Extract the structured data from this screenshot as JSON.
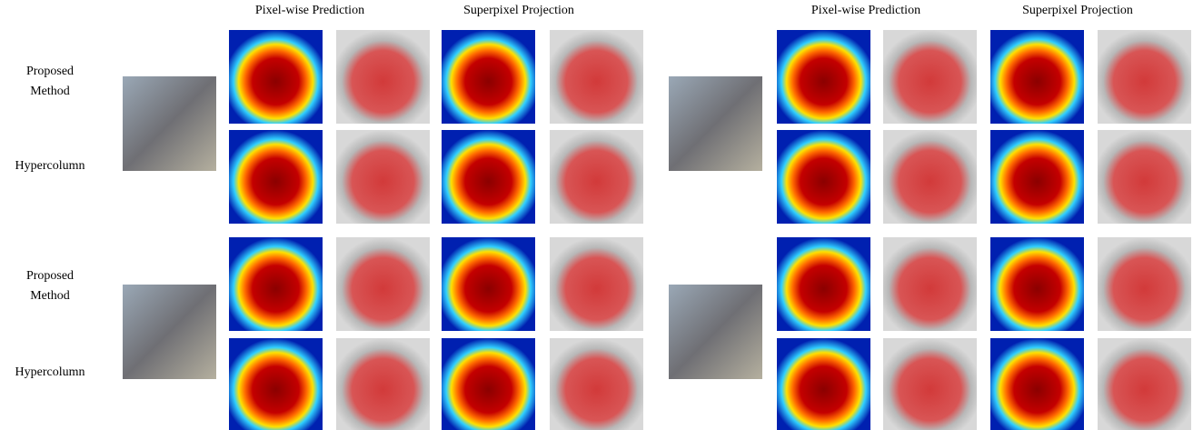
{
  "headers": {
    "left": [
      "Pixel-wise Prediction",
      "Superpixel Projection"
    ],
    "right": [
      "Pixel-wise Prediction",
      "Superpixel Projection"
    ]
  },
  "row_labels": [
    "Proposed Method",
    "Hypercolumn",
    "Proposed Method",
    "Hypercolumn"
  ]
}
